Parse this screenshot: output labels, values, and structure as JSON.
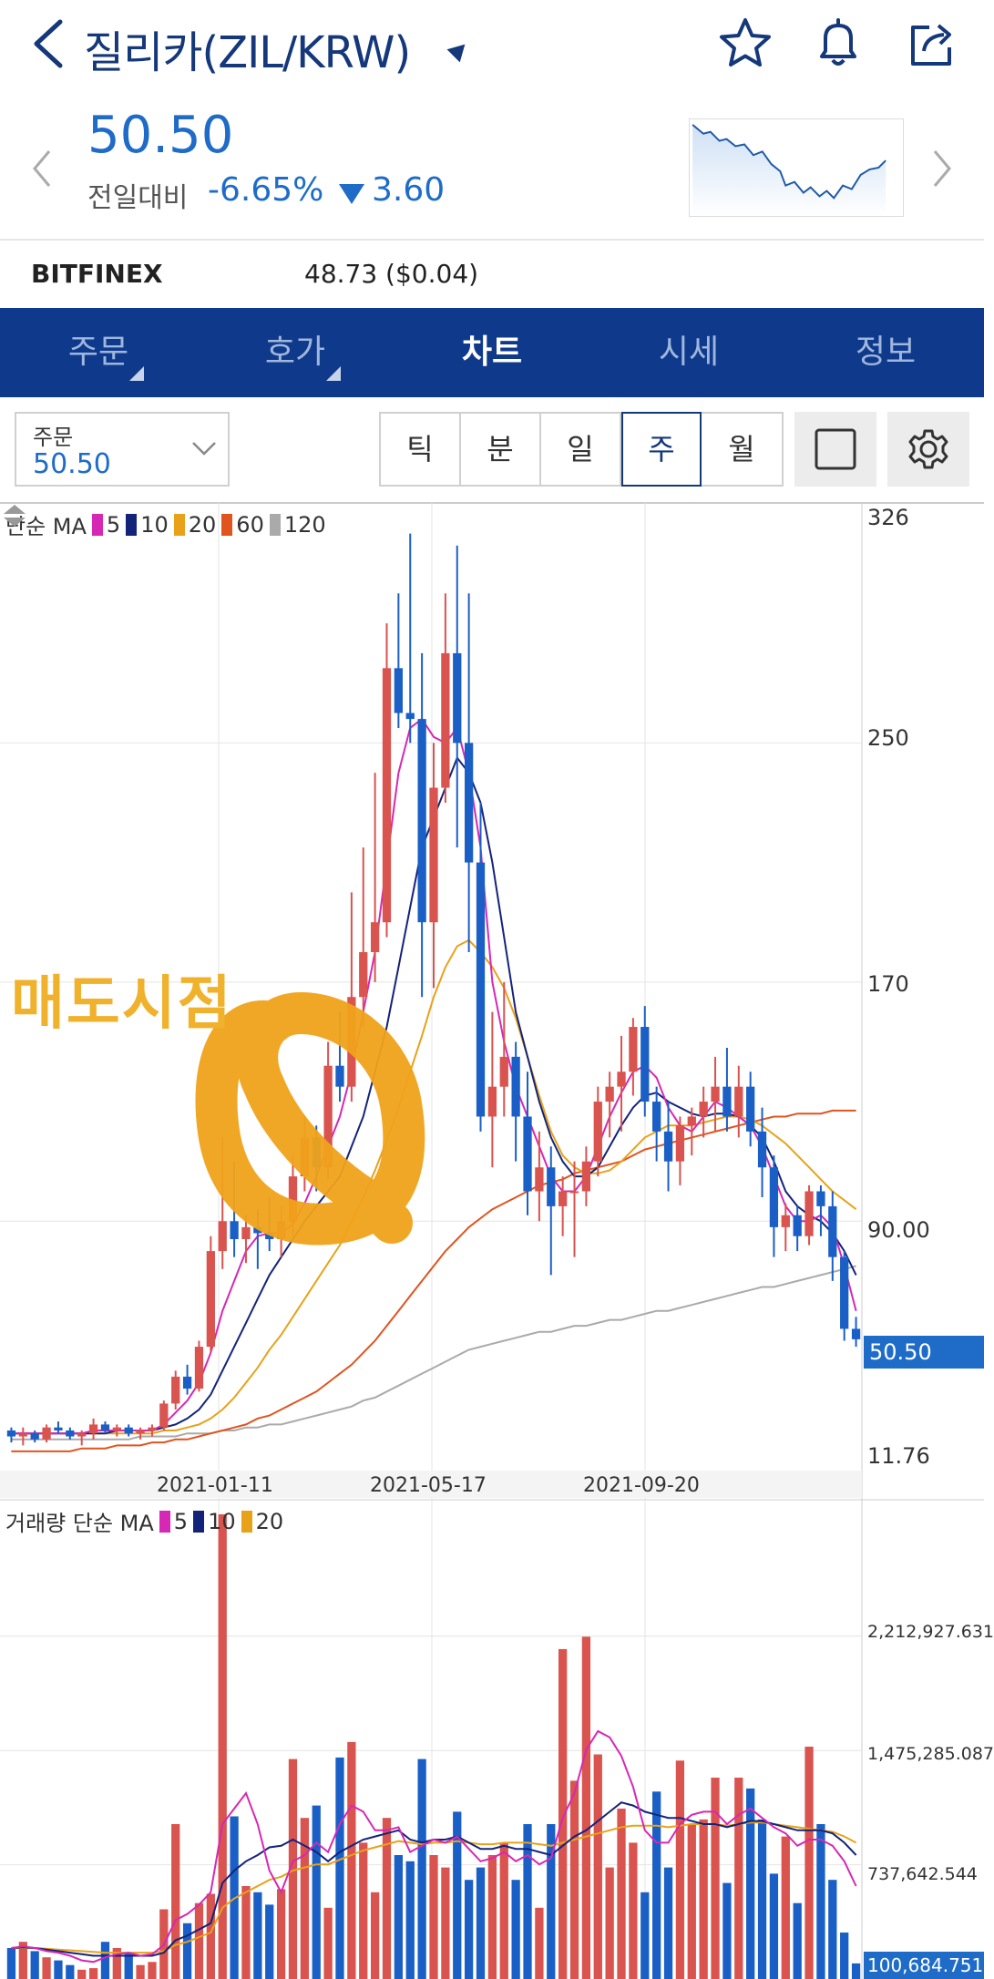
{
  "header": {
    "title": "질리카(ZIL/KRW)",
    "price": "50.50",
    "change_label": "전일대비",
    "change_pct": "-6.65%",
    "change_val": "3.60"
  },
  "exchange": {
    "name": "BITFINEX",
    "value": "48.73 ($0.04)"
  },
  "tabs": [
    {
      "label": "주문",
      "has_corner": true
    },
    {
      "label": "호가",
      "has_corner": true
    },
    {
      "label": "차트",
      "active": true
    },
    {
      "label": "시세"
    },
    {
      "label": "정보"
    }
  ],
  "order_box": {
    "label": "주문",
    "value": "50.50"
  },
  "periods": [
    "틱",
    "분",
    "일",
    "주",
    "월"
  ],
  "active_period": "주",
  "colors": {
    "up": "#d9534f",
    "down": "#1a5fc6",
    "ma5": "#d628b5",
    "ma10": "#14237a",
    "ma20": "#e8a21a",
    "ma60": "#e0541e",
    "ma120": "#aaaaaa",
    "brand": "#0f3a8c"
  },
  "price_legend": {
    "prefix": "단순 MA",
    "items": [
      {
        "label": "5",
        "color": "#d628b5"
      },
      {
        "label": "10",
        "color": "#14237a"
      },
      {
        "label": "20",
        "color": "#e8a21a"
      },
      {
        "label": "60",
        "color": "#e0541e"
      },
      {
        "label": "120",
        "color": "#aaaaaa"
      }
    ]
  },
  "volume_legend": {
    "prefix": "거래량 단순 MA",
    "items": [
      {
        "label": "5",
        "color": "#d628b5"
      },
      {
        "label": "10",
        "color": "#14237a"
      },
      {
        "label": "20",
        "color": "#e8a21a"
      }
    ]
  },
  "annotation": "매도시점",
  "price_axis": [
    "326",
    "250",
    "170",
    "90.00",
    "11.76"
  ],
  "current_price_tag": "50.50",
  "volume_axis": [
    "2,212,927.631",
    "1,475,285.087",
    "737,642.544"
  ],
  "current_volume_tag": "100,684.751",
  "date_labels": [
    "2021-01-11",
    "2021-05-17",
    "2021-09-20"
  ],
  "chart_data": {
    "type": "candlestick",
    "interval": "weekly",
    "ylim": [
      11.76,
      326
    ],
    "x_labels": [
      "2021-01-11",
      "2021-05-17",
      "2021-09-20"
    ],
    "candles": [
      [
        20,
        21,
        16,
        18
      ],
      [
        18,
        21,
        15,
        19
      ],
      [
        19,
        20,
        16,
        17
      ],
      [
        17,
        22,
        16,
        21
      ],
      [
        21,
        23,
        19,
        20
      ],
      [
        20,
        21,
        17,
        18
      ],
      [
        18,
        20,
        15,
        19
      ],
      [
        19,
        24,
        17,
        22
      ],
      [
        22,
        23,
        19,
        20
      ],
      [
        20,
        22,
        18,
        21
      ],
      [
        21,
        22,
        18,
        19
      ],
      [
        19,
        21,
        17,
        20
      ],
      [
        20,
        22,
        18,
        21
      ],
      [
        21,
        30,
        20,
        29
      ],
      [
        29,
        40,
        27,
        38
      ],
      [
        38,
        42,
        32,
        34
      ],
      [
        34,
        50,
        33,
        48
      ],
      [
        48,
        85,
        46,
        80
      ],
      [
        80,
        118,
        74,
        90
      ],
      [
        90,
        110,
        78,
        84
      ],
      [
        84,
        92,
        76,
        88
      ],
      [
        88,
        94,
        74,
        86
      ],
      [
        86,
        98,
        80,
        84
      ],
      [
        84,
        95,
        78,
        90
      ],
      [
        90,
        112,
        85,
        105
      ],
      [
        105,
        125,
        100,
        118
      ],
      [
        118,
        122,
        100,
        108
      ],
      [
        108,
        150,
        104,
        142
      ],
      [
        142,
        160,
        130,
        135
      ],
      [
        135,
        200,
        130,
        165
      ],
      [
        165,
        215,
        155,
        180
      ],
      [
        180,
        240,
        170,
        190
      ],
      [
        190,
        290,
        185,
        275
      ],
      [
        275,
        300,
        255,
        260
      ],
      [
        260,
        320,
        250,
        258
      ],
      [
        258,
        280,
        165,
        190
      ],
      [
        190,
        250,
        168,
        235
      ],
      [
        235,
        300,
        230,
        280
      ],
      [
        280,
        316,
        215,
        250
      ],
      [
        250,
        300,
        180,
        210
      ],
      [
        210,
        230,
        120,
        125
      ],
      [
        125,
        160,
        108,
        135
      ],
      [
        135,
        170,
        125,
        145
      ],
      [
        145,
        150,
        110,
        125
      ],
      [
        125,
        140,
        92,
        100
      ],
      [
        100,
        120,
        90,
        108
      ],
      [
        108,
        115,
        72,
        95
      ],
      [
        95,
        105,
        85,
        100
      ],
      [
        100,
        110,
        78,
        100
      ],
      [
        100,
        115,
        95,
        110
      ],
      [
        110,
        135,
        105,
        130
      ],
      [
        130,
        140,
        118,
        135
      ],
      [
        135,
        152,
        120,
        140
      ],
      [
        140,
        158,
        132,
        155
      ],
      [
        155,
        162,
        125,
        130
      ],
      [
        130,
        135,
        110,
        120
      ],
      [
        120,
        130,
        100,
        110
      ],
      [
        110,
        125,
        102,
        122
      ],
      [
        122,
        128,
        112,
        125
      ],
      [
        125,
        135,
        118,
        130
      ],
      [
        130,
        145,
        120,
        135
      ],
      [
        135,
        148,
        120,
        125
      ],
      [
        125,
        142,
        118,
        135
      ],
      [
        135,
        140,
        115,
        120
      ],
      [
        120,
        128,
        98,
        108
      ],
      [
        108,
        112,
        78,
        88
      ],
      [
        88,
        96,
        80,
        92
      ],
      [
        92,
        95,
        80,
        85
      ],
      [
        85,
        102,
        82,
        100
      ],
      [
        100,
        102,
        85,
        95
      ],
      [
        95,
        100,
        70,
        78
      ],
      [
        78,
        80,
        50,
        54
      ],
      [
        54,
        58,
        48,
        50.5
      ]
    ],
    "ma5": [
      19,
      19,
      19,
      19,
      19,
      19,
      19,
      20,
      20,
      20,
      20,
      20,
      20,
      22,
      26,
      30,
      36,
      46,
      60,
      70,
      80,
      85,
      86,
      86,
      89,
      96,
      105,
      115,
      125,
      140,
      160,
      180,
      210,
      240,
      255,
      258,
      252,
      250,
      255,
      240,
      215,
      170,
      150,
      135,
      125,
      115,
      105,
      100,
      100,
      105,
      115,
      125,
      133,
      140,
      142,
      138,
      128,
      122,
      120,
      125,
      130,
      128,
      125,
      122,
      115,
      105,
      95,
      90,
      90,
      92,
      88,
      75,
      60
    ],
    "ma10": [
      19,
      19,
      19,
      19,
      19,
      19,
      19,
      19,
      19,
      20,
      20,
      20,
      20,
      21,
      22,
      24,
      27,
      32,
      40,
      48,
      56,
      64,
      72,
      78,
      84,
      90,
      95,
      100,
      105,
      115,
      125,
      140,
      155,
      175,
      195,
      215,
      225,
      235,
      245,
      240,
      230,
      210,
      185,
      160,
      145,
      130,
      118,
      110,
      105,
      105,
      108,
      115,
      122,
      128,
      132,
      133,
      130,
      128,
      126,
      125,
      126,
      126,
      125,
      122,
      118,
      110,
      100,
      95,
      92,
      90,
      86,
      80,
      72
    ],
    "ma20": [
      19,
      19,
      19,
      19,
      19,
      19,
      19,
      19,
      19,
      19,
      19,
      19,
      19,
      20,
      20,
      21,
      22,
      24,
      27,
      31,
      36,
      41,
      47,
      52,
      58,
      64,
      70,
      76,
      82,
      90,
      98,
      107,
      117,
      128,
      140,
      152,
      165,
      175,
      182,
      184,
      180,
      175,
      168,
      158,
      145,
      132,
      120,
      112,
      108,
      106,
      106,
      107,
      110,
      114,
      118,
      120,
      122,
      122,
      122,
      123,
      124,
      125,
      125,
      124,
      122,
      119,
      116,
      112,
      108,
      104,
      100,
      97,
      94
    ],
    "ma60": [
      13,
      13,
      13,
      13,
      13,
      13,
      14,
      14,
      14,
      15,
      15,
      15,
      16,
      16,
      17,
      17,
      18,
      19,
      20,
      21,
      22,
      24,
      25,
      27,
      29,
      31,
      33,
      36,
      39,
      42,
      46,
      50,
      55,
      60,
      65,
      70,
      75,
      80,
      84,
      88,
      91,
      94,
      96,
      98,
      100,
      102,
      103,
      104,
      106,
      107,
      108,
      109,
      110,
      112,
      114,
      115,
      116,
      117,
      118,
      119,
      120,
      121,
      122,
      123,
      124,
      125,
      125,
      126,
      126,
      126,
      127,
      127,
      127
    ],
    "ma120": [
      17,
      17,
      17,
      17,
      17,
      17,
      17,
      17,
      17,
      17,
      17,
      18,
      18,
      18,
      18,
      19,
      19,
      19,
      20,
      20,
      21,
      21,
      22,
      22,
      23,
      24,
      25,
      26,
      27,
      28,
      30,
      31,
      33,
      35,
      37,
      39,
      41,
      43,
      45,
      47,
      48,
      49,
      50,
      51,
      52,
      53,
      53,
      54,
      55,
      55,
      56,
      57,
      57,
      58,
      59,
      60,
      60,
      61,
      62,
      63,
      64,
      65,
      66,
      67,
      68,
      68,
      69,
      70,
      71,
      72,
      73,
      74,
      75
    ],
    "volume": {
      "ylim": [
        0,
        3000000
      ],
      "values": [
        200000,
        240000,
        180000,
        140000,
        120000,
        90000,
        60000,
        70000,
        240000,
        200000,
        170000,
        90000,
        110000,
        450000,
        1000000,
        360000,
        490000,
        550000,
        3000000,
        1050000,
        600000,
        560000,
        480000,
        580000,
        1420000,
        1040000,
        1120000,
        460000,
        1430000,
        1530000,
        880000,
        560000,
        1040000,
        800000,
        760000,
        1420000,
        800000,
        720000,
        1080000,
        640000,
        720000,
        800000,
        880000,
        640000,
        1000000,
        460000,
        1000000,
        2130000,
        1280000,
        2210000,
        1450000,
        720000,
        1100000,
        880000,
        560000,
        1210000,
        720000,
        1410000,
        1000000,
        1030000,
        1300000,
        620000,
        1300000,
        1230000,
        1030000,
        680000,
        920000,
        490000,
        1500000,
        1000000,
        640000,
        300000,
        100685
      ],
      "ma5": [
        200000,
        210000,
        200000,
        180000,
        170000,
        150000,
        120000,
        110000,
        140000,
        160000,
        170000,
        150000,
        160000,
        220000,
        380000,
        420000,
        480000,
        560000,
        1000000,
        1100000,
        1200000,
        1000000,
        700000,
        560000,
        760000,
        800000,
        880000,
        820000,
        1000000,
        1120000,
        1080000,
        960000,
        960000,
        980000,
        820000,
        860000,
        900000,
        880000,
        920000,
        840000,
        760000,
        780000,
        820000,
        760000,
        800000,
        740000,
        780000,
        1040000,
        1200000,
        1480000,
        1600000,
        1560000,
        1440000,
        1240000,
        960000,
        880000,
        880000,
        1000000,
        1060000,
        1080000,
        1080000,
        1000000,
        1060000,
        1100000,
        1040000,
        980000,
        940000,
        860000,
        900000,
        900000,
        860000,
        760000,
        600000
      ],
      "ma10": [
        200000,
        205000,
        200000,
        190000,
        180000,
        170000,
        160000,
        150000,
        150000,
        150000,
        150000,
        150000,
        150000,
        170000,
        250000,
        280000,
        320000,
        360000,
        620000,
        700000,
        760000,
        800000,
        850000,
        860000,
        900000,
        860000,
        820000,
        760000,
        820000,
        860000,
        900000,
        920000,
        940000,
        960000,
        900000,
        880000,
        900000,
        900000,
        920000,
        880000,
        840000,
        840000,
        860000,
        840000,
        840000,
        820000,
        800000,
        860000,
        920000,
        960000,
        1020000,
        1080000,
        1140000,
        1120000,
        1080000,
        1060000,
        1040000,
        1040000,
        1020000,
        1000000,
        1000000,
        980000,
        1000000,
        1020000,
        1020000,
        1000000,
        980000,
        960000,
        960000,
        960000,
        940000,
        880000,
        800000
      ],
      "ma20": [
        200000,
        200000,
        200000,
        195000,
        190000,
        185000,
        180000,
        175000,
        170000,
        170000,
        170000,
        170000,
        170000,
        180000,
        220000,
        240000,
        270000,
        300000,
        460000,
        520000,
        560000,
        600000,
        640000,
        660000,
        700000,
        720000,
        740000,
        740000,
        770000,
        800000,
        830000,
        850000,
        870000,
        890000,
        880000,
        870000,
        880000,
        880000,
        890000,
        880000,
        870000,
        870000,
        880000,
        880000,
        880000,
        870000,
        860000,
        880000,
        900000,
        920000,
        940000,
        960000,
        980000,
        990000,
        990000,
        990000,
        980000,
        990000,
        1000000,
        1000000,
        1000000,
        990000,
        1000000,
        1010000,
        1010000,
        1000000,
        990000,
        980000,
        970000,
        960000,
        950000,
        920000,
        880000
      ]
    }
  }
}
